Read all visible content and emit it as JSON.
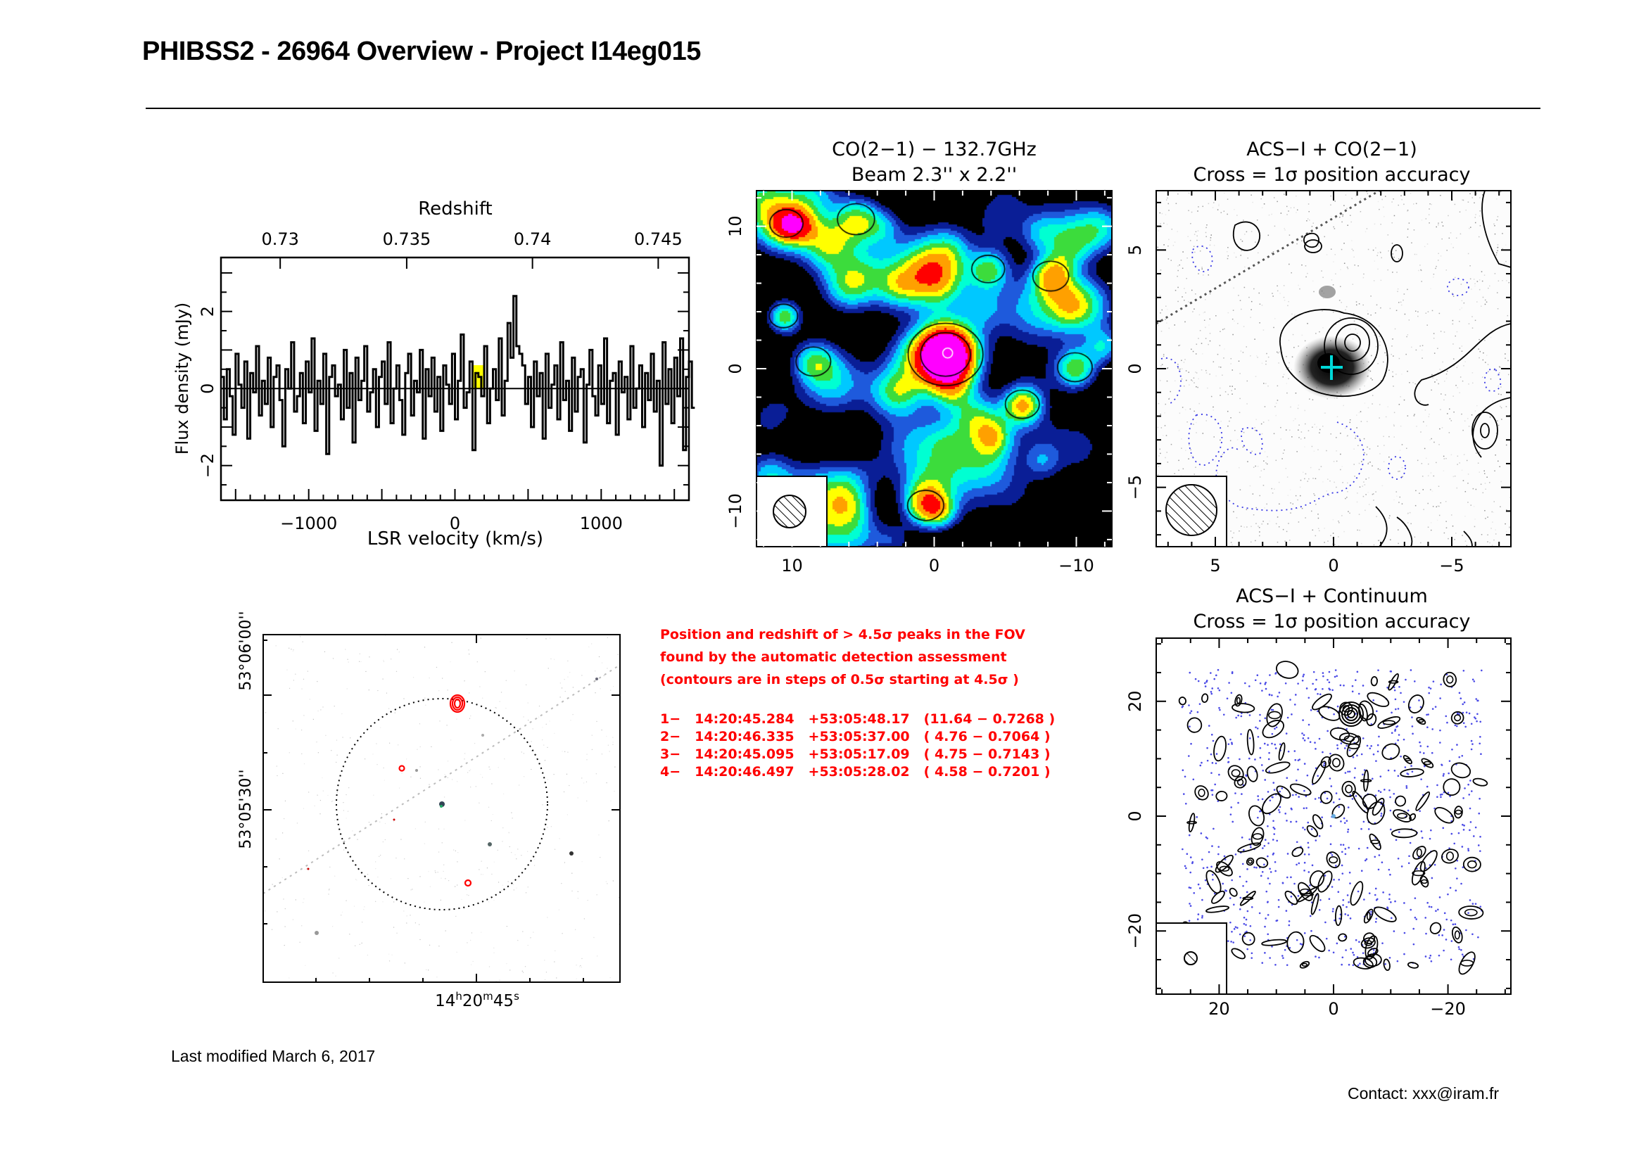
{
  "page": {
    "title": "PHIBSS2 - 26964 Overview - Project I14eg015",
    "last_modified": "Last modified March 6, 2017",
    "contact": "Contact: xxx@iram.fr"
  },
  "spectrum_panel": {
    "top_axis_label": "Redshift",
    "bottom_axis_label": "LSR velocity (km/s)",
    "y_axis_label": "Flux density (mJy)",
    "top_ticks": [
      "0.73",
      "0.735",
      "0.74",
      "0.745"
    ],
    "bottom_ticks": [
      "−1000",
      "0",
      "1000"
    ],
    "y_ticks": [
      "−2",
      "0",
      "2"
    ]
  },
  "co_map_panel": {
    "title_line1": "CO(2−1) − 132.7GHz",
    "title_line2": "Beam 2.3'' x 2.2''",
    "x_ticks": [
      "10",
      "0",
      "−10"
    ],
    "y_ticks": [
      "10",
      "0",
      "−10"
    ]
  },
  "acs_co_panel": {
    "title_line1": "ACS−I + CO(2−1)",
    "title_line2": "Cross = 1σ position accuracy",
    "x_ticks": [
      "5",
      "0",
      "−5"
    ],
    "y_ticks": [
      "5",
      "0",
      "−5"
    ]
  },
  "acs_cont_panel": {
    "title_line1": "ACS−I + Continuum",
    "title_line2": "Cross = 1σ position accuracy",
    "x_ticks": [
      "20",
      "0",
      "−20"
    ],
    "y_ticks": [
      "20",
      "0",
      "−20"
    ]
  },
  "finder_panel": {
    "dec_ticks": [
      "53°06'00''",
      "53°05'30''"
    ],
    "ra_label": {
      "h": "14",
      "m": "20",
      "s": "45"
    }
  },
  "peaks": {
    "note_lines": [
      "Position and redshift of > 4.5σ peaks in the FOV",
      "found by the automatic detection assessment",
      "(contours are in steps of 0.5σ starting at 4.5σ )"
    ],
    "rows": [
      {
        "id": "1−",
        "ra": "14:20:45.284",
        "dec": "+53:05:48.17",
        "info": "(11.64 − 0.7268 )"
      },
      {
        "id": "2−",
        "ra": "14:20:46.335",
        "dec": "+53:05:37.00",
        "info": "( 4.76 − 0.7064 )"
      },
      {
        "id": "3−",
        "ra": "14:20:45.095",
        "dec": "+53:05:17.09",
        "info": "( 4.75 − 0.7143 )"
      },
      {
        "id": "4−",
        "ra": "14:20:46.497",
        "dec": "+53:05:28.02",
        "info": "( 4.58 − 0.7201 )"
      }
    ]
  },
  "chart_data": [
    {
      "type": "line",
      "title": "Redshift",
      "xlabel": "LSR velocity (km/s)",
      "ylabel": "Flux density (mJy)",
      "xlim": [
        -1600,
        1600
      ],
      "ylim": [
        -2.9,
        3.4
      ],
      "redshift_axis": {
        "ticks": [
          0.73,
          0.735,
          0.74,
          0.745
        ],
        "tick_velocity": [
          -1195,
          -330,
          530,
          1390
        ]
      },
      "highlight_range": [
        115,
        205
      ],
      "highlight_color": "#ffff00",
      "series": [
        {
          "name": "spectrum",
          "x_start": -1600,
          "x_step": 20,
          "values": [
            0.3,
            -0.8,
            0.5,
            -0.2,
            -1.2,
            0.9,
            0.1,
            -0.5,
            0.7,
            -1.3,
            0.4,
            -0.1,
            1.1,
            -0.7,
            0.2,
            -0.4,
            0.8,
            -1.0,
            0.3,
            0.6,
            -0.3,
            -1.5,
            0.5,
            0.0,
            1.2,
            -0.6,
            -0.2,
            0.4,
            -0.9,
            0.7,
            -0.1,
            1.3,
            -1.1,
            0.2,
            -0.4,
            0.9,
            -1.7,
            0.3,
            0.6,
            -0.2,
            0.1,
            -0.8,
            1.0,
            -0.5,
            0.4,
            -1.4,
            0.8,
            -0.3,
            0.2,
            1.1,
            -0.6,
            -0.1,
            0.5,
            -1.0,
            0.3,
            0.7,
            -0.4,
            1.2,
            -0.9,
            0.0,
            0.6,
            -0.3,
            -1.2,
            0.4,
            0.9,
            -0.7,
            0.2,
            -0.1,
            1.0,
            -1.3,
            0.5,
            -0.2,
            0.8,
            -0.6,
            0.3,
            -1.1,
            0.6,
            0.1,
            -0.4,
            0.9,
            -0.8,
            0.2,
            1.4,
            -0.5,
            -0.1,
            0.7,
            -1.6,
            0.4,
            0.3,
            -0.2,
            1.1,
            -0.9,
            0.0,
            0.5,
            -0.3,
            1.3,
            -0.7,
            0.2,
            1.7,
            0.8,
            2.4,
            1.1,
            0.9,
            0.6,
            -0.4,
            0.3,
            -1.0,
            0.7,
            -0.2,
            0.4,
            -1.3,
            0.9,
            -0.5,
            0.1,
            0.6,
            -0.8,
            1.2,
            -0.3,
            0.2,
            -1.1,
            0.8,
            -0.6,
            0.3,
            0.5,
            -1.4,
            0.1,
            1.0,
            -0.2,
            -0.7,
            0.6,
            -0.4,
            1.3,
            -0.9,
            0.2,
            0.4,
            -1.2,
            0.7,
            -0.1,
            0.3,
            -0.8,
            1.1,
            -0.5,
            0.0,
            0.6,
            -1.0,
            0.4,
            -0.3,
            0.9,
            -0.6,
            0.2,
            -2.0,
            1.2,
            -0.4,
            0.5,
            -0.9,
            0.8,
            -0.2,
            1.3,
            -1.6,
            0.3,
            0.7,
            -0.5
          ]
        }
      ]
    },
    {
      "type": "heatmap",
      "title": "CO(2−1) − 132.7GHz",
      "xlim": [
        12.5,
        -12.5
      ],
      "ylim": [
        -12.5,
        12.5
      ],
      "colormap": [
        "#000000",
        "#0a1e96",
        "#1e5adc",
        "#00c8ff",
        "#00ffd2",
        "#3cdc3c",
        "#ffff00",
        "#ffa000",
        "#ff0000",
        "#ff00ff"
      ],
      "sources": [
        {
          "x": -0.8,
          "y": 1.0,
          "amp": 11.6,
          "w": 1.3
        },
        {
          "x": -6.2,
          "y": -2.5,
          "amp": 5.0,
          "w": 0.9
        },
        {
          "x": 10.4,
          "y": 10.2,
          "amp": 4.8,
          "w": 0.9
        },
        {
          "x": 0.6,
          "y": -9.6,
          "amp": 4.6,
          "w": 1.0
        },
        {
          "x": 10.6,
          "y": 3.7,
          "amp": 4.4,
          "w": 0.8
        },
        {
          "x": -8.2,
          "y": 6.5,
          "amp": 4.5,
          "w": 1.0
        },
        {
          "x": -9.9,
          "y": 0.1,
          "amp": 4.2,
          "w": 1.0
        },
        {
          "x": 5.5,
          "y": 10.5,
          "amp": 4.0,
          "w": 1.1
        },
        {
          "x": -3.8,
          "y": 7.0,
          "amp": 3.8,
          "w": 1.0
        },
        {
          "x": 8.5,
          "y": 0.5,
          "amp": 3.5,
          "w": 1.1
        }
      ]
    },
    {
      "type": "scatter",
      "title": "ACS−I + CO(2−1)",
      "xlim": [
        7.5,
        -7.5
      ],
      "ylim": [
        -7.5,
        7.5
      ],
      "cross": {
        "x": 0.0,
        "y": 0.0,
        "color": "#00e5e5"
      },
      "galaxy": {
        "x": 0.2,
        "y": 0.0
      },
      "beam_major_arcsec": 2.3,
      "beam_minor_arcsec": 2.2
    },
    {
      "type": "scatter",
      "title": "ACS−I + Continuum",
      "xlim": [
        31,
        -31
      ],
      "ylim": [
        -31,
        31
      ],
      "bright_source": {
        "x": -3.5,
        "y": 17.0
      }
    }
  ]
}
